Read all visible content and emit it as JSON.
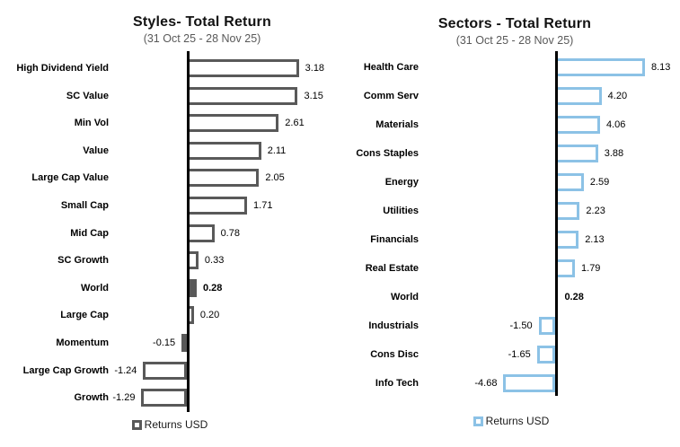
{
  "chart_data": [
    {
      "type": "bar",
      "orientation": "horizontal",
      "title": "Styles- Total Return",
      "subtitle": "(31 Oct 25 - 28 Nov 25)",
      "legend_label": "Returns USD",
      "series_name": "Returns USD",
      "categories": [
        "High Dividend Yield",
        "SC Value",
        "Min Vol",
        "Value",
        "Large Cap Value",
        "Small Cap",
        "Mid Cap",
        "SC Growth",
        "World",
        "Large Cap",
        "Momentum",
        "Large Cap Growth",
        "Growth"
      ],
      "values": [
        3.18,
        3.15,
        2.61,
        2.11,
        2.05,
        1.71,
        0.78,
        0.33,
        0.28,
        0.2,
        -0.15,
        -1.24,
        -1.29
      ],
      "highlight_category": "World",
      "bar_fill_color": "#ffffff",
      "bar_border_color": "#595959",
      "highlight_fill_color": "#595959",
      "axis_color": "#000000",
      "xlim": [
        -1.29,
        3.18
      ],
      "grid": false,
      "legend_position": "bottom"
    },
    {
      "type": "bar",
      "orientation": "horizontal",
      "title": "Sectors - Total Return",
      "subtitle": "(31 Oct 25 - 28 Nov 25)",
      "legend_label": "Returns USD",
      "series_name": "Returns USD",
      "categories": [
        "Health Care",
        "Comm Serv",
        "Materials",
        "Cons Staples",
        "Energy",
        "Utilities",
        "Financials",
        "Real Estate",
        "World",
        "Industrials",
        "Cons Disc",
        "Info Tech"
      ],
      "values": [
        8.13,
        4.2,
        4.06,
        3.88,
        2.59,
        2.23,
        2.13,
        1.79,
        0.28,
        -1.5,
        -1.65,
        -4.68
      ],
      "highlight_category": "World",
      "bar_fill_color": "#ffffff",
      "bar_border_color": "#8CC2E6",
      "highlight_fill_color": "#17538F",
      "axis_color": "#000000",
      "xlim": [
        -4.68,
        8.13
      ],
      "grid": false,
      "legend_position": "bottom"
    }
  ],
  "colors": {
    "background": "#ffffff",
    "subtitle_gray": "#595959",
    "styles_gray": "#595959",
    "sectors_light_blue": "#8CC2E6",
    "sectors_world_navy": "#17538F"
  }
}
